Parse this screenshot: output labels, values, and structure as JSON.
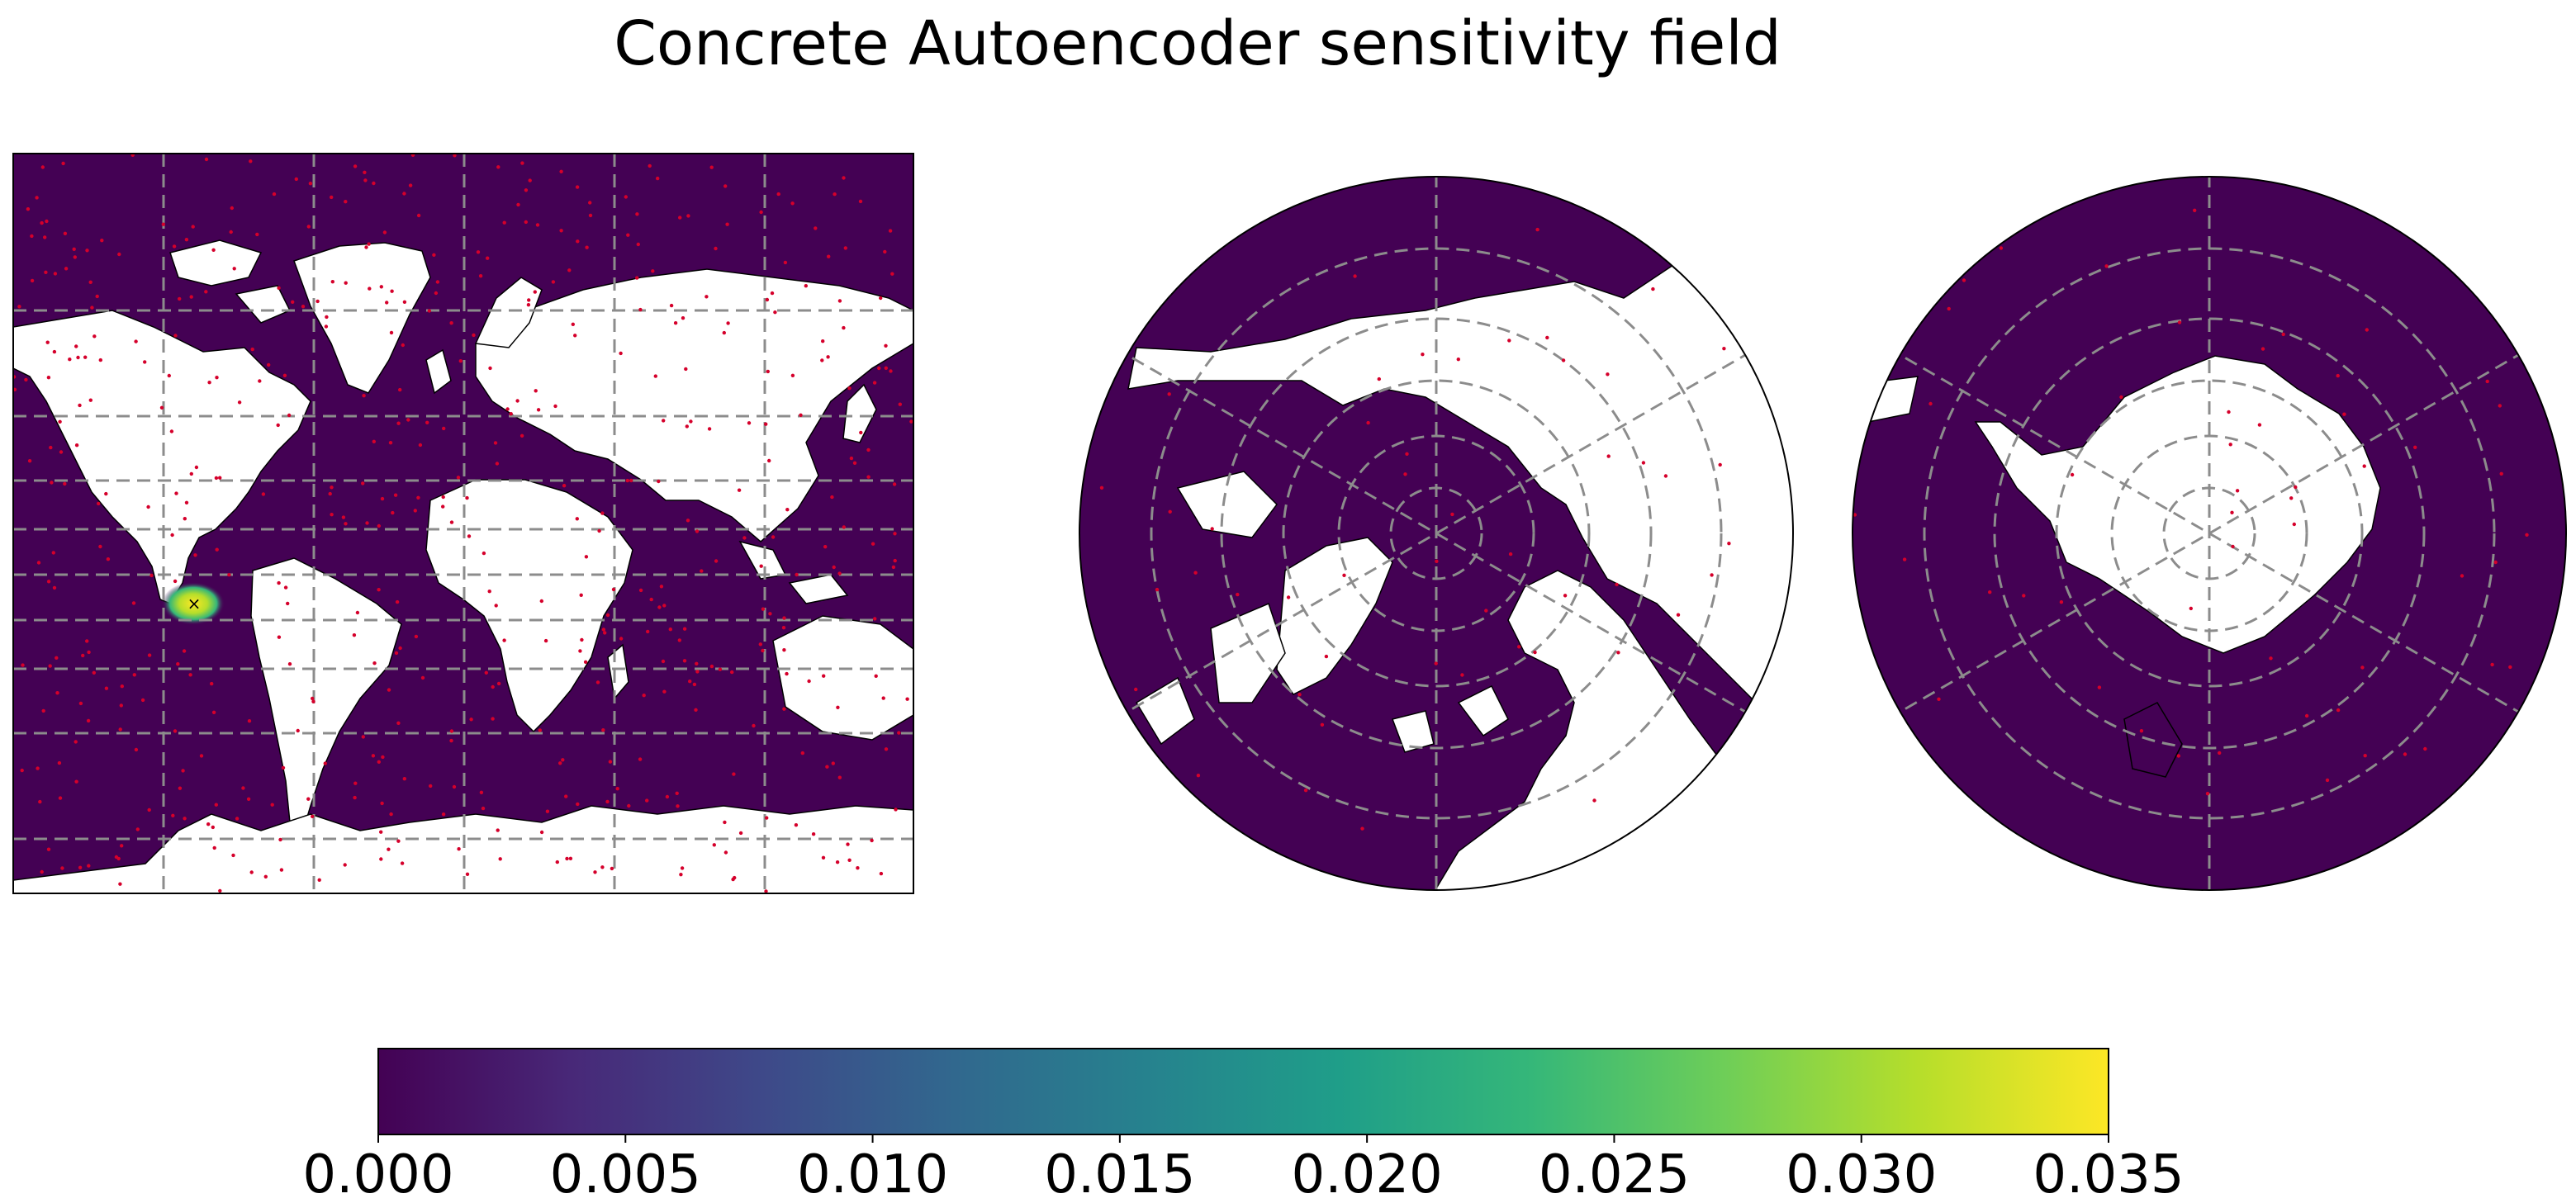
{
  "title": "Concrete Autoencoder sensitivity field",
  "colors": {
    "ocean": "#440154",
    "land": "#ffffff",
    "gridline": "#8c8c8c",
    "sensor_dot": "#d5002b",
    "hotspot": "#fde725"
  },
  "maps": [
    {
      "name": "mercator",
      "projection": "Mercator"
    },
    {
      "name": "north-polar",
      "projection": "North Polar Stereographic"
    },
    {
      "name": "south-polar",
      "projection": "South Polar Stereographic"
    }
  ],
  "colorbar": {
    "colormap": "viridis",
    "stops": [
      "#440154",
      "#482878",
      "#3e4989",
      "#31688e",
      "#26828e",
      "#1f9e89",
      "#35b779",
      "#6ece58",
      "#b5de2b",
      "#fde725"
    ],
    "ticks": [
      "0.000",
      "0.005",
      "0.010",
      "0.015",
      "0.020",
      "0.025",
      "0.030",
      "0.035"
    ],
    "range": [
      0.0,
      0.035
    ]
  }
}
